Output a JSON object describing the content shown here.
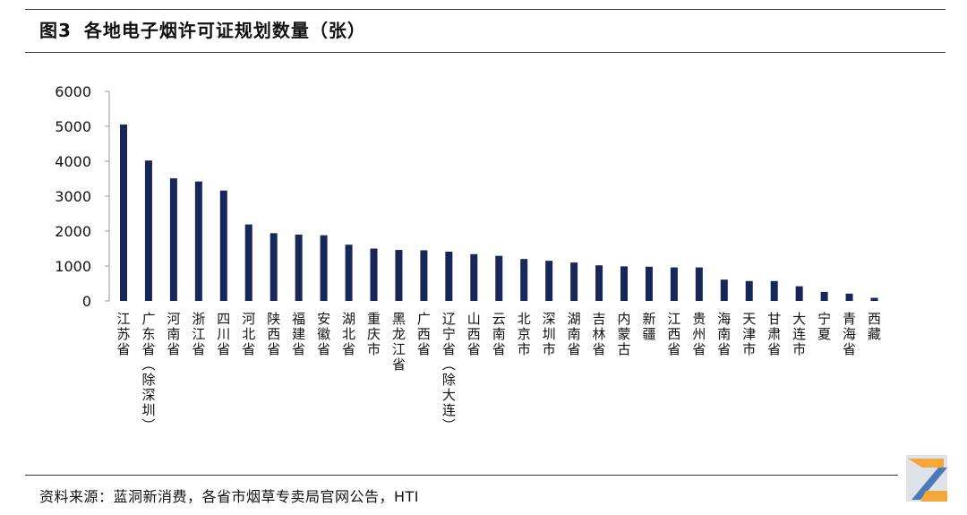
{
  "figure": {
    "label": "图3",
    "title": "各地电子烟许可证规划数量（张）",
    "source": "资料来源：蓝洞新消费，各省市烟草专卖局官网公告，HTI"
  },
  "colors": {
    "bar": "#17275a",
    "axis": "#999999",
    "rule": "#333333"
  },
  "chart_data": {
    "type": "bar",
    "title": "各地电子烟许可证规划数量（张）",
    "xlabel": "",
    "ylabel": "",
    "ylim": [
      0,
      6000
    ],
    "yticks": [
      0,
      1000,
      2000,
      3000,
      4000,
      5000,
      6000
    ],
    "grid": false,
    "categories": [
      "江苏省",
      "广东省（除深圳）",
      "河南省",
      "浙江省",
      "四川省",
      "河北省",
      "陕西省",
      "福建省",
      "安徽省",
      "湖北省",
      "重庆市",
      "黑龙江省",
      "广西省",
      "辽宁省（除大连）",
      "山西省",
      "云南省",
      "北京市",
      "深圳市",
      "湖南省",
      "吉林省",
      "内蒙古",
      "新疆",
      "江西省",
      "贵州省",
      "海南省",
      "天津市",
      "甘肃省",
      "大连市",
      "宁夏",
      "青海省",
      "西藏"
    ],
    "values": [
      5050,
      4020,
      3510,
      3420,
      3160,
      2190,
      1940,
      1900,
      1880,
      1610,
      1500,
      1460,
      1450,
      1410,
      1340,
      1290,
      1200,
      1150,
      1100,
      1020,
      990,
      980,
      960,
      960,
      610,
      570,
      570,
      420,
      260,
      210,
      90
    ]
  }
}
